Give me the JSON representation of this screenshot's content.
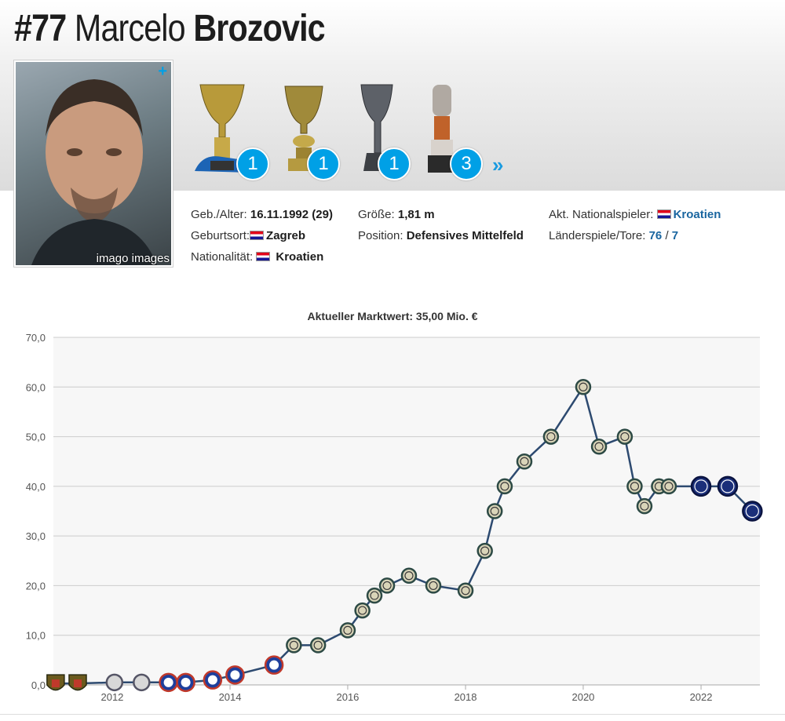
{
  "player": {
    "number": "#77",
    "first_name": "Marcelo",
    "last_name": "Brozovic",
    "photo_credit": "imago images",
    "photo_plus": "+"
  },
  "trophies": [
    {
      "icon": "scudetto-trophy-icon",
      "count": "1"
    },
    {
      "icon": "coppa-italia-trophy-icon",
      "count": "1"
    },
    {
      "icon": "supercoppa-trophy-icon",
      "count": "1"
    },
    {
      "icon": "croatian-cup-trophy-icon",
      "count": "3"
    }
  ],
  "more_arrow": "»",
  "info": {
    "dob_label": "Geb./Alter:",
    "dob_value": "16.11.1992 (29)",
    "birthplace_label": "Geburtsort:",
    "birthplace_value": "Zagreb",
    "nationality_label": "Nationalität:",
    "nationality_value": "Kroatien",
    "height_label": "Größe:",
    "height_value": "1,81 m",
    "position_label": "Position:",
    "position_value": "Defensives Mittelfeld",
    "national_label": "Akt. Nationalspieler:",
    "national_value": "Kroatien",
    "caps_label": "Länderspiele/Tore:",
    "caps_value": "76",
    "caps_sep": "/",
    "goals_value": "7"
  },
  "colors": {
    "accent": "#00a0e6",
    "line": "#2d4a70",
    "grid": "#cccccc",
    "plot_bg": "#f7f7f7"
  },
  "chart_data": {
    "type": "line",
    "title": "Aktueller Marktwert: 35,00 Mio. €",
    "xlabel": "",
    "ylabel": "",
    "ylim": [
      0,
      70
    ],
    "yticks": [
      "0,0",
      "10,0",
      "20,0",
      "30,0",
      "40,0",
      "50,0",
      "60,0",
      "70,0"
    ],
    "xticks": [
      "2012",
      "2014",
      "2016",
      "2018",
      "2020",
      "2022"
    ],
    "xlim": [
      "2011-01-01",
      "2023-01-01"
    ],
    "grid": true,
    "series": [
      {
        "points": [
          {
            "x": "2011-01-15",
            "y": 0.3,
            "club": "hrvatski-dragovoljac"
          },
          {
            "x": "2011-06-01",
            "y": 0.3,
            "club": "hrvatski-dragovoljac"
          },
          {
            "x": "2012-01-15",
            "y": 0.5,
            "club": "lokomotiva"
          },
          {
            "x": "2012-07-01",
            "y": 0.5,
            "club": "lokomotiva"
          },
          {
            "x": "2012-12-15",
            "y": 0.5,
            "club": "dinamo-zagreb"
          },
          {
            "x": "2013-04-01",
            "y": 0.5,
            "club": "dinamo-zagreb"
          },
          {
            "x": "2013-09-15",
            "y": 1.0,
            "club": "dinamo-zagreb"
          },
          {
            "x": "2014-02-01",
            "y": 2.0,
            "club": "dinamo-zagreb"
          },
          {
            "x": "2014-10-01",
            "y": 4.0,
            "club": "dinamo-zagreb"
          },
          {
            "x": "2015-02-01",
            "y": 8.0,
            "club": "inter-old"
          },
          {
            "x": "2015-07-01",
            "y": 8.0,
            "club": "inter-old"
          },
          {
            "x": "2016-01-01",
            "y": 11.0,
            "club": "inter-old"
          },
          {
            "x": "2016-04-01",
            "y": 15.0,
            "club": "inter-old"
          },
          {
            "x": "2016-06-15",
            "y": 18.0,
            "club": "inter-old"
          },
          {
            "x": "2016-09-01",
            "y": 20.0,
            "club": "inter-old"
          },
          {
            "x": "2017-01-15",
            "y": 22.0,
            "club": "inter-old"
          },
          {
            "x": "2017-06-15",
            "y": 20.0,
            "club": "inter-old"
          },
          {
            "x": "2018-01-01",
            "y": 19.0,
            "club": "inter-old"
          },
          {
            "x": "2018-05-01",
            "y": 27.0,
            "club": "inter-old"
          },
          {
            "x": "2018-07-01",
            "y": 35.0,
            "club": "inter-old"
          },
          {
            "x": "2018-09-01",
            "y": 40.0,
            "club": "inter-old"
          },
          {
            "x": "2019-01-01",
            "y": 45.0,
            "club": "inter-old"
          },
          {
            "x": "2019-06-15",
            "y": 50.0,
            "club": "inter-old"
          },
          {
            "x": "2020-01-01",
            "y": 60.0,
            "club": "inter-old"
          },
          {
            "x": "2020-04-08",
            "y": 48.0,
            "club": "inter-old"
          },
          {
            "x": "2020-09-15",
            "y": 50.0,
            "club": "inter-old"
          },
          {
            "x": "2020-11-15",
            "y": 40.0,
            "club": "inter-old"
          },
          {
            "x": "2021-01-15",
            "y": 36.0,
            "club": "inter-old"
          },
          {
            "x": "2021-04-15",
            "y": 40.0,
            "club": "inter-old"
          },
          {
            "x": "2021-06-15",
            "y": 40.0,
            "club": "inter-old"
          },
          {
            "x": "2022-01-01",
            "y": 40.0,
            "club": "inter-new"
          },
          {
            "x": "2022-06-15",
            "y": 40.0,
            "club": "inter-new"
          },
          {
            "x": "2022-11-15",
            "y": 35.0,
            "club": "inter-new"
          }
        ]
      }
    ]
  }
}
